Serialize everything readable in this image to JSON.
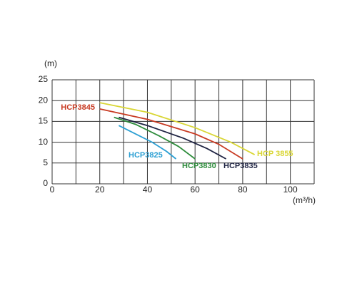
{
  "chart_data": {
    "type": "line",
    "y_label": "(m)",
    "x_label": "(m³/h)",
    "xlim": [
      0,
      110
    ],
    "ylim": [
      0,
      25
    ],
    "xticks": [
      0,
      20,
      40,
      60,
      80,
      100
    ],
    "xminor": [
      10,
      30,
      50,
      70,
      90,
      110
    ],
    "yticks": [
      0,
      5,
      10,
      15,
      20,
      25
    ],
    "grid": true,
    "series": [
      {
        "name": "HCP 3855",
        "color": "#d9d634",
        "x": [
          20,
          40,
          60,
          75,
          85
        ],
        "values": [
          19.5,
          17.2,
          13.5,
          10,
          7
        ]
      },
      {
        "name": "HCP3845",
        "color": "#c83a22",
        "x": [
          20,
          40,
          60,
          70,
          80
        ],
        "values": [
          18,
          15.5,
          12,
          9.5,
          6
        ]
      },
      {
        "name": "HCP3835",
        "color": "#1e2342",
        "x": [
          28,
          40,
          55,
          65,
          73
        ],
        "values": [
          16,
          14,
          11,
          8.5,
          6
        ]
      },
      {
        "name": "HCP3830",
        "color": "#2e8c3c",
        "x": [
          26,
          35,
          45,
          53,
          60
        ],
        "values": [
          16,
          14.3,
          11.5,
          9,
          6
        ]
      },
      {
        "name": "HCP3825",
        "color": "#2b9fd3",
        "x": [
          28,
          35,
          42,
          48,
          52
        ],
        "values": [
          14,
          12,
          10,
          7.8,
          6
        ]
      }
    ]
  }
}
